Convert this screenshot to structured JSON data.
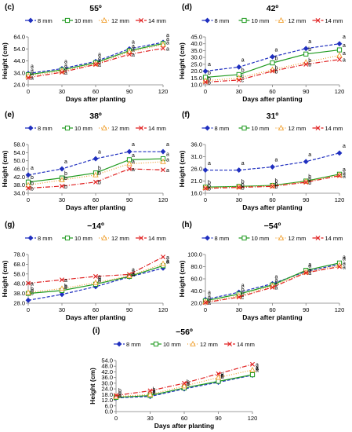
{
  "series_styles": [
    {
      "name": "8 mm",
      "color": "#1f2fbf",
      "dash": "4,2",
      "marker": "diamond"
    },
    {
      "name": "10 mm",
      "color": "#1e9a1e",
      "dash": "",
      "marker": "square"
    },
    {
      "name": "12 mm",
      "color": "#f0a030",
      "dash": "1,2",
      "marker": "triangle"
    },
    {
      "name": "14 mm",
      "color": "#e02020",
      "dash": "6,2,1,2",
      "marker": "x"
    }
  ],
  "x_axis_label": "Days after planting",
  "y_axis_label": "Height (cm)",
  "chart_data": [
    {
      "panel": "(c)",
      "title": "55º",
      "type": "line",
      "x": [
        0,
        30,
        60,
        90,
        120
      ],
      "yticks": [
        24.0,
        34.0,
        44.0,
        54.0,
        64.0
      ],
      "ylim": [
        24.0,
        64.0
      ],
      "series": [
        {
          "name": "8 mm",
          "values": [
            33.5,
            37.5,
            43.5,
            54.0,
            59.5
          ],
          "letters": [
            "a",
            "a",
            "a",
            "a",
            "a"
          ]
        },
        {
          "name": "10 mm",
          "values": [
            32.5,
            36.5,
            42.5,
            52.5,
            58.5
          ],
          "letters": [
            "a",
            "a",
            "a",
            "a",
            "a"
          ]
        },
        {
          "name": "12 mm",
          "values": [
            31.5,
            35.5,
            41.5,
            51.5,
            57.5
          ],
          "letters": [
            "a",
            "a",
            "a",
            "a",
            "a"
          ]
        },
        {
          "name": "14 mm",
          "values": [
            30.0,
            34.5,
            41.0,
            49.5,
            54.5
          ],
          "letters": [
            "a",
            "a",
            "a",
            "a",
            "a"
          ]
        }
      ]
    },
    {
      "panel": "(d)",
      "title": "42º",
      "type": "line",
      "x": [
        0,
        30,
        60,
        90,
        120
      ],
      "yticks": [
        10.0,
        15.0,
        20.0,
        25.0,
        30.0,
        35.0,
        40.0,
        45.0
      ],
      "ylim": [
        10.0,
        45.0
      ],
      "series": [
        {
          "name": "8 mm",
          "values": [
            20.0,
            23.0,
            30.5,
            36.5,
            40.0
          ],
          "letters": [
            "a",
            "a",
            "a",
            "a",
            "a"
          ]
        },
        {
          "name": "10 mm",
          "values": [
            15.5,
            17.5,
            26.0,
            32.5,
            35.5
          ],
          "letters": [
            "b",
            "b",
            "b",
            "b",
            "a"
          ]
        },
        {
          "name": "12 mm",
          "values": [
            13.0,
            15.0,
            21.0,
            26.5,
            31.5
          ],
          "letters": [
            "b",
            "c",
            "b",
            "b",
            "a"
          ]
        },
        {
          "name": "14 mm",
          "values": [
            12.0,
            13.5,
            20.0,
            25.0,
            28.5
          ],
          "letters": [
            "b",
            "c",
            "b",
            "b",
            "a"
          ]
        }
      ]
    },
    {
      "panel": "(e)",
      "title": "38º",
      "type": "line",
      "x": [
        0,
        30,
        60,
        90,
        120
      ],
      "yticks": [
        34.0,
        38.0,
        42.0,
        46.0,
        50.0,
        54.0,
        58.0
      ],
      "ylim": [
        34.0,
        58.0
      ],
      "series": [
        {
          "name": "8 mm",
          "values": [
            43.0,
            46.0,
            51.0,
            54.5,
            54.5
          ],
          "letters": [
            "a",
            "a",
            "a",
            "a",
            "a"
          ]
        },
        {
          "name": "10 mm",
          "values": [
            39.5,
            41.5,
            44.0,
            50.5,
            51.0
          ],
          "letters": [
            "b",
            "b",
            "b",
            "a",
            "a"
          ]
        },
        {
          "name": "12 mm",
          "values": [
            38.0,
            40.5,
            43.0,
            48.5,
            49.5
          ],
          "letters": [
            "b",
            "b",
            "b",
            "a",
            "a"
          ]
        },
        {
          "name": "14 mm",
          "values": [
            36.5,
            37.5,
            39.5,
            46.0,
            45.5
          ],
          "letters": [
            "b",
            "b",
            "b",
            "a",
            "a"
          ]
        }
      ]
    },
    {
      "panel": "(f)",
      "title": "31º",
      "type": "line",
      "x": [
        0,
        30,
        60,
        90,
        120
      ],
      "yticks": [
        16.0,
        21.0,
        26.0,
        31.0,
        36.0
      ],
      "ylim": [
        16.0,
        36.0
      ],
      "series": [
        {
          "name": "8 mm",
          "values": [
            25.5,
            25.5,
            26.8,
            29.0,
            32.5
          ],
          "letters": [
            "a",
            "a",
            "a",
            "a",
            "a"
          ]
        },
        {
          "name": "10 mm",
          "values": [
            18.5,
            18.8,
            19.2,
            21.0,
            23.8
          ],
          "letters": [
            "b",
            "b",
            "b",
            "b",
            "a"
          ]
        },
        {
          "name": "12 mm",
          "values": [
            18.3,
            18.6,
            19.0,
            20.8,
            23.5
          ],
          "letters": [
            "b",
            "b",
            "b",
            "b",
            "a"
          ]
        },
        {
          "name": "14 mm",
          "values": [
            18.0,
            18.4,
            18.8,
            20.5,
            23.2
          ],
          "letters": [
            "b",
            "b",
            "b",
            "b",
            "a"
          ]
        }
      ]
    },
    {
      "panel": "(g)",
      "title": "−14º",
      "type": "line",
      "x": [
        0,
        30,
        60,
        90,
        120
      ],
      "yticks": [
        28.0,
        38.0,
        48.0,
        58.0,
        68.0,
        78.0
      ],
      "ylim": [
        28.0,
        78.0
      ],
      "series": [
        {
          "name": "8 mm",
          "values": [
            31.0,
            37.0,
            45.0,
            55.0,
            64.0
          ],
          "letters": [
            "b",
            "b",
            "b",
            "a",
            "a"
          ]
        },
        {
          "name": "10 mm",
          "values": [
            38.0,
            41.0,
            47.5,
            55.5,
            66.5
          ],
          "letters": [
            "b",
            "b",
            "b",
            "a",
            "a"
          ]
        },
        {
          "name": "12 mm",
          "values": [
            39.0,
            43.0,
            49.0,
            56.0,
            68.5
          ],
          "letters": [
            "b",
            "b",
            "b",
            "a",
            "a"
          ]
        },
        {
          "name": "14 mm",
          "values": [
            48.5,
            52.0,
            55.5,
            57.5,
            75.5
          ],
          "letters": [
            "a",
            "a",
            "a",
            "a",
            "a"
          ]
        }
      ]
    },
    {
      "panel": "(h)",
      "title": "−54º",
      "type": "line",
      "x": [
        0,
        30,
        60,
        90,
        120
      ],
      "yticks": [
        20.0,
        40.0,
        60.0,
        80.0,
        100.0
      ],
      "ylim": [
        20.0,
        100.0
      ],
      "series": [
        {
          "name": "8 mm",
          "values": [
            26.0,
            38.0,
            52.0,
            72.0,
            84.0
          ],
          "letters": [
            "a",
            "a",
            "a",
            "a",
            "a"
          ]
        },
        {
          "name": "10 mm",
          "values": [
            24.0,
            35.0,
            50.0,
            74.0,
            86.0
          ],
          "letters": [
            "a",
            "b",
            "a",
            "a",
            "a"
          ]
        },
        {
          "name": "12 mm",
          "values": [
            22.0,
            32.0,
            48.0,
            71.0,
            82.0
          ],
          "letters": [
            "a",
            "b",
            "a",
            "a",
            "a"
          ]
        },
        {
          "name": "14 mm",
          "values": [
            21.0,
            30.0,
            46.0,
            70.0,
            80.0
          ],
          "letters": [
            "a",
            "c",
            "a",
            "a",
            "a"
          ]
        }
      ]
    },
    {
      "panel": "(i)",
      "title": "−56º",
      "type": "line",
      "x": [
        0,
        30,
        60,
        90,
        120
      ],
      "yticks": [
        0.0,
        6.0,
        12.0,
        18.0,
        24.0,
        30.0,
        36.0,
        42.0,
        48.0,
        54.0
      ],
      "ylim": [
        0.0,
        54.0
      ],
      "series": [
        {
          "name": "8 mm",
          "values": [
            14.5,
            16.0,
            24.0,
            31.0,
            38.5
          ],
          "letters": [
            "b",
            "b",
            "b",
            "a",
            "a"
          ]
        },
        {
          "name": "10 mm",
          "values": [
            15.0,
            17.0,
            25.0,
            32.0,
            39.0
          ],
          "letters": [
            "b",
            "b",
            "b",
            "a",
            "a"
          ]
        },
        {
          "name": "12 mm",
          "values": [
            16.0,
            18.0,
            27.0,
            36.0,
            44.0
          ],
          "letters": [
            "b",
            "b",
            "b",
            "a",
            "a"
          ]
        },
        {
          "name": "14 mm",
          "values": [
            17.0,
            22.0,
            30.0,
            40.0,
            50.0
          ],
          "letters": [
            "a",
            "a",
            "a",
            "a",
            "a"
          ]
        }
      ]
    }
  ]
}
